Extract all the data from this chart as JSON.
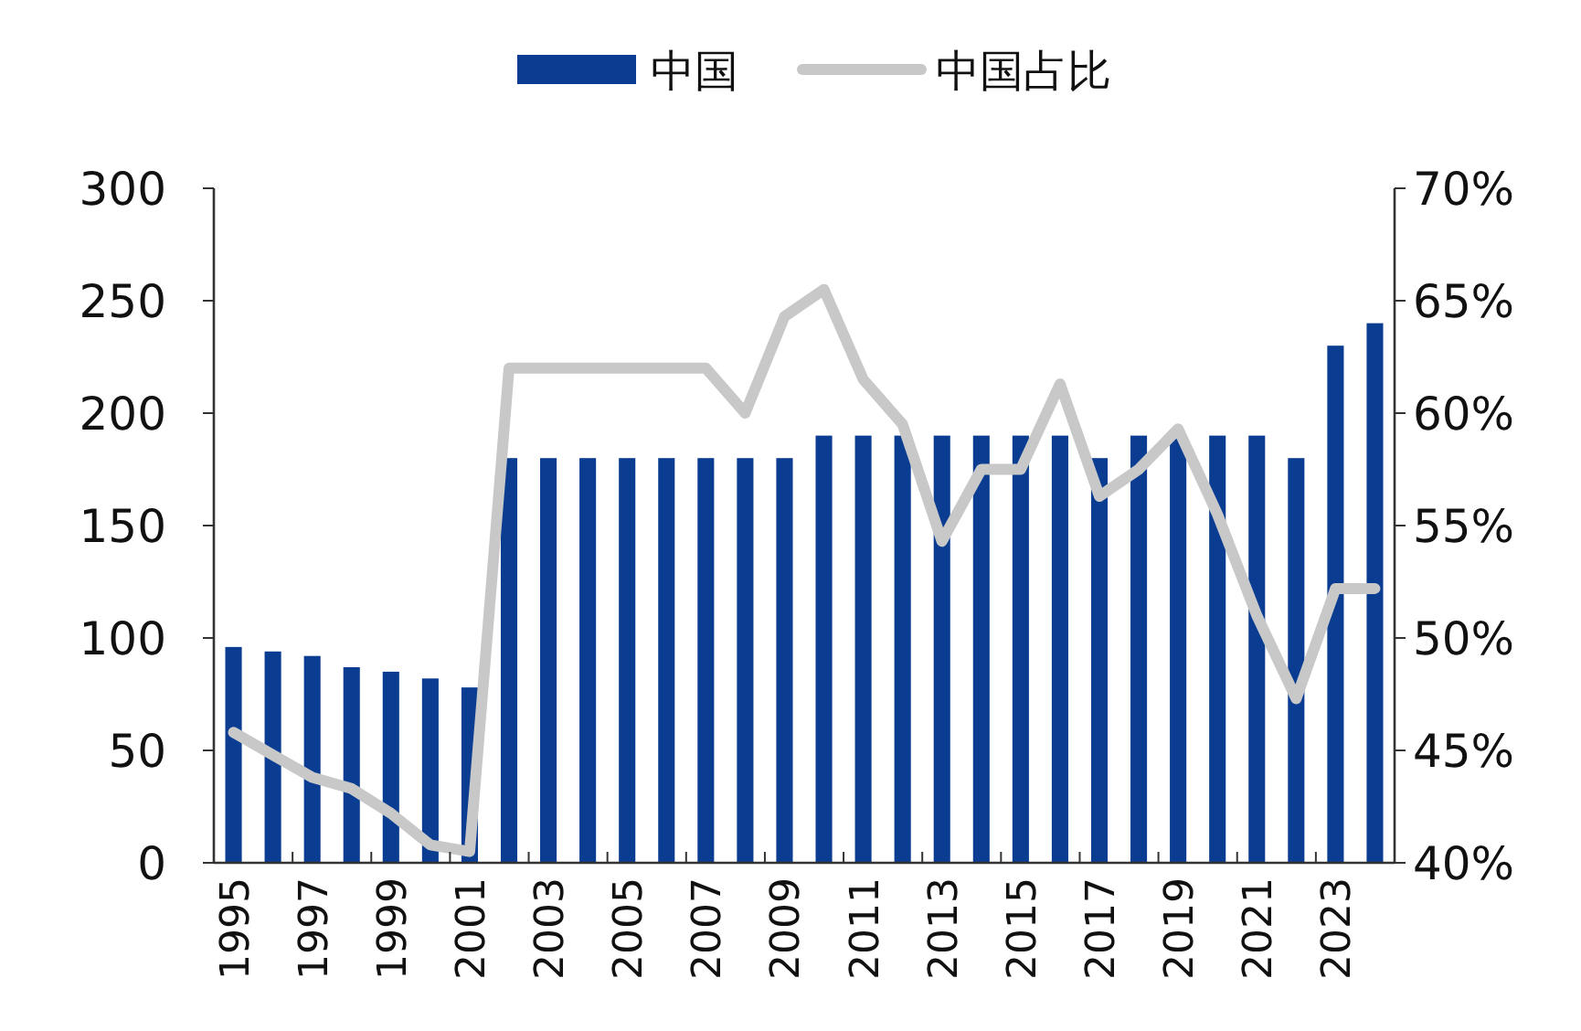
{
  "chart_data": {
    "type": "bar",
    "categories": [
      "1995",
      null,
      "1997",
      null,
      "1999",
      null,
      "2001",
      null,
      "2003",
      null,
      "2005",
      null,
      "2007",
      null,
      "2009",
      null,
      "2011",
      null,
      "2013",
      null,
      "2015",
      null,
      "2017",
      null,
      "2019",
      null,
      "2021",
      null,
      "2023",
      null
    ],
    "series": [
      {
        "name": "中国",
        "color": "#0a3d91",
        "values": [
          96,
          94,
          92,
          87,
          85,
          82,
          78,
          180,
          180,
          180,
          180,
          180,
          180,
          180,
          180,
          190,
          190,
          190,
          190,
          190,
          190,
          190,
          180,
          190,
          190,
          190,
          190,
          180,
          230,
          240
        ]
      },
      {
        "name": "中国占比",
        "type": "line",
        "axis": "y2",
        "color": "#c8c8c8",
        "values": [
          45.8,
          44.8,
          43.8,
          43.3,
          42.2,
          40.8,
          40.5,
          62,
          62,
          62,
          62,
          62,
          62,
          60,
          64.3,
          65.5,
          61.5,
          59.5,
          54.3,
          57.5,
          57.5,
          61.3,
          56.3,
          57.5,
          59.3,
          55.5,
          51,
          47.3,
          52.2,
          52.2
        ]
      }
    ],
    "ylim": [
      0,
      300
    ],
    "yticks": [
      0,
      50,
      100,
      150,
      200,
      250,
      300
    ],
    "y2lim": [
      40,
      70
    ],
    "y2ticks": [
      {
        "value": 40,
        "label": "40%"
      },
      {
        "value": 45,
        "label": "45%"
      },
      {
        "value": 50,
        "label": "50%"
      },
      {
        "value": 55,
        "label": "55%"
      },
      {
        "value": 60,
        "label": "60%"
      },
      {
        "value": 65,
        "label": "65%"
      },
      {
        "value": 70,
        "label": "70%"
      }
    ],
    "legend": "top",
    "grid": false
  }
}
